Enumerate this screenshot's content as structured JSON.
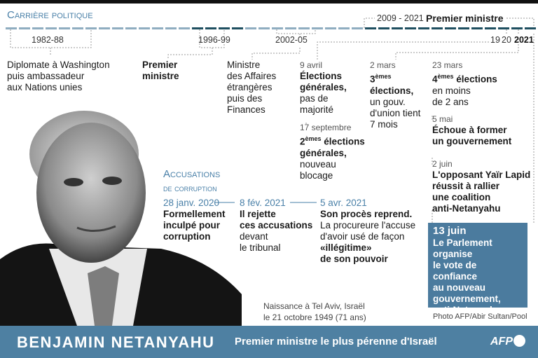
{
  "header": {
    "section_title": "Carrière politique",
    "pm_range": "2009 - 2021",
    "pm_label": "Premier ministre"
  },
  "timeline": {
    "periods": [
      "1982-88",
      "1996-99",
      "2002-05"
    ],
    "y19": "19",
    "y20": "20",
    "y2021": "2021",
    "colors": {
      "light": "#8fadc0",
      "dark": "#1f4f60"
    }
  },
  "career": [
    {
      "lines": [
        "Diplomate à Washington",
        "puis ambassadeur",
        "aux Nations unies"
      ]
    },
    {
      "lines": [
        "Premier",
        "ministre"
      ]
    },
    {
      "lines": [
        "Ministre",
        "des Affaires",
        "étrangères",
        "puis des",
        "Finances"
      ]
    }
  ],
  "elections": {
    "e1": {
      "date": "9 avril",
      "bold": [
        "Élections",
        "générales,"
      ],
      "rest": [
        "pas de",
        "majorité"
      ]
    },
    "e2": {
      "date": "17 septembre",
      "ord": "2",
      "sup": "èmes",
      "bold1": " élections",
      "bold2": "générales,",
      "rest": [
        "nouveau",
        "blocage"
      ]
    },
    "e3": {
      "date": "2 mars",
      "ord": "3",
      "sup": "èmes",
      "bold1": "élections,",
      "rest": [
        "un gouv.",
        "d'union tient",
        "7 mois"
      ]
    },
    "e4": {
      "date": "23 mars",
      "ord": "4",
      "sup": "èmes",
      "bold1": " élections",
      "rest": [
        "en moins",
        "de 2 ans"
      ]
    },
    "e5": {
      "date": "5 mai",
      "bold": [
        "Échoue à former",
        "un gouvernement"
      ]
    },
    "e6": {
      "date": "2 juin",
      "bold": [
        "L'opposant Yaïr Lapid",
        "réussit à rallier",
        "une coalition",
        "anti-Netanyahu"
      ]
    }
  },
  "highlight": {
    "date": "13 juin",
    "lines": [
      "Le Parlement",
      "organise",
      "le vote de confiance",
      "au nouveau",
      "gouvernement,",
      "anti-Netanyahu"
    ],
    "color": "#4b7b9e"
  },
  "accusations": {
    "title1": "Accusations",
    "title2": "de corruption",
    "items": [
      {
        "date": "28 janv. 2020",
        "bold": [
          "Formellement",
          "inculpé pour",
          "corruption"
        ],
        "rest": []
      },
      {
        "date": "8 fév. 2021",
        "bold": [
          "Il rejette",
          "ces accusations"
        ],
        "rest": [
          "devant",
          "le tribunal"
        ]
      },
      {
        "date": "5 avr. 2021",
        "bold": [
          "Son procès reprend."
        ],
        "rest": [
          "La procureure l'accuse",
          "d'avoir usé de façon"
        ],
        "bold2": [
          "«illégitime»",
          "de son pouvoir"
        ]
      }
    ]
  },
  "birth": [
    "Naissance à Tel Aviv, Israël",
    "le 21 octobre 1949 (71 ans)"
  ],
  "credit": "Photo AFP/Abir Sultan/Pool",
  "footer": {
    "name": "BENJAMIN NETANYAHU",
    "subtitle": "Premier ministre le plus pérenne d'Israël",
    "logo": "AFP",
    "color": "#4e80a2"
  }
}
